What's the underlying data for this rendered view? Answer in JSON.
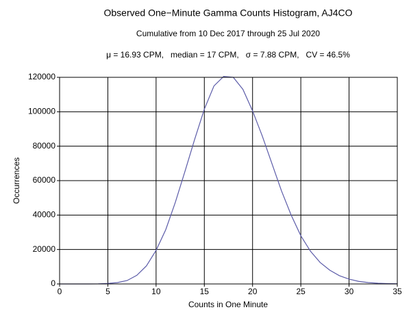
{
  "chart_data": {
    "type": "line",
    "title": "Observed One−Minute Gamma Counts Histogram, AJ4CO",
    "subtitle": "Cumulative from 10 Dec 2017 through 25 Jul 2020",
    "annotation": "μ = 16.93 CPM,   median = 17 CPM,   σ = 7.88 CPM,   CV = 46.5%",
    "x_label": "Counts in One Minute",
    "y_label": "Occurrences",
    "x": [
      0,
      1,
      2,
      3,
      4,
      5,
      6,
      7,
      8,
      9,
      10,
      11,
      12,
      13,
      14,
      15,
      16,
      17,
      18,
      19,
      20,
      21,
      22,
      23,
      24,
      25,
      26,
      27,
      28,
      29,
      30,
      31,
      32,
      33,
      34,
      35
    ],
    "values": [
      0,
      0,
      0,
      0,
      50,
      300,
      800,
      2000,
      5000,
      10500,
      19500,
      31500,
      47500,
      65500,
      84000,
      101500,
      115000,
      120500,
      120000,
      113000,
      100500,
      86000,
      70000,
      54000,
      40000,
      28000,
      19000,
      12500,
      8000,
      4800,
      2800,
      1500,
      800,
      400,
      200,
      100
    ],
    "color": "#5b5ba8",
    "xlim": [
      0,
      35
    ],
    "xticks": [
      0,
      5,
      10,
      15,
      20,
      25,
      30,
      35
    ],
    "ylim": [
      0,
      120000
    ],
    "yticks": [
      0,
      20000,
      40000,
      60000,
      80000,
      100000,
      120000
    ],
    "grid": true
  }
}
